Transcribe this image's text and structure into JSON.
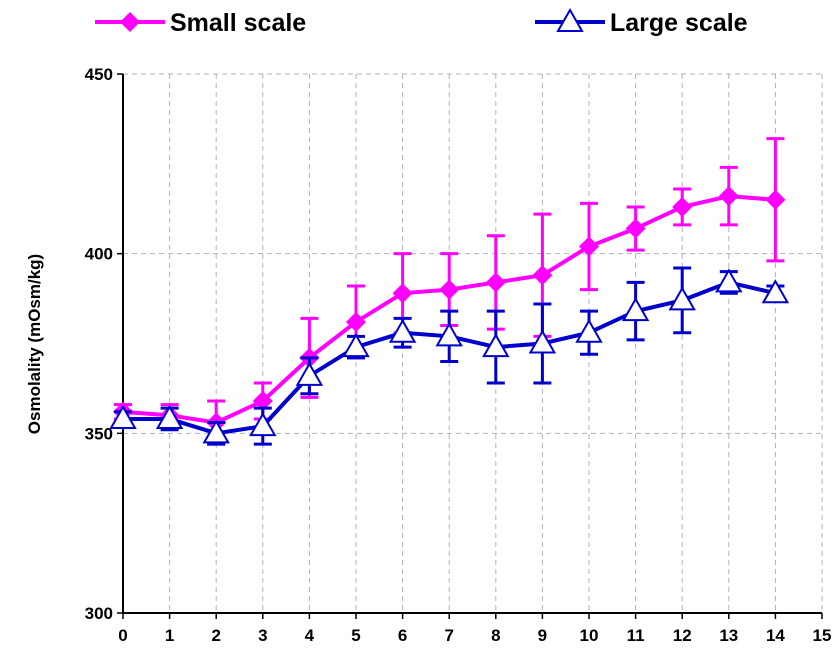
{
  "chart_data": {
    "type": "line",
    "ylabel": "Osmolality (mOsm/kg)",
    "xlabel": "",
    "xlim": [
      0,
      15
    ],
    "ylim": [
      300,
      450
    ],
    "xticks": [
      0,
      1,
      2,
      3,
      4,
      5,
      6,
      7,
      8,
      9,
      10,
      11,
      12,
      13,
      14,
      15
    ],
    "yticks": [
      300,
      350,
      400,
      450
    ],
    "grid": true,
    "legend_position": "top",
    "series": [
      {
        "name": "Small scale",
        "color": "#ff00ff",
        "marker": "diamond",
        "x": [
          0,
          1,
          2,
          3,
          4,
          5,
          6,
          7,
          8,
          9,
          10,
          11,
          12,
          13,
          14
        ],
        "y": [
          356,
          355,
          353,
          359,
          371,
          381,
          389,
          390,
          392,
          394,
          402,
          407,
          413,
          416,
          415
        ],
        "error": [
          2,
          3,
          6,
          5,
          11,
          10,
          11,
          10,
          13,
          17,
          12,
          6,
          5,
          8,
          17
        ]
      },
      {
        "name": "Large scale",
        "color": "#0000cc",
        "marker": "triangle",
        "x": [
          0,
          1,
          2,
          3,
          4,
          5,
          6,
          7,
          8,
          9,
          10,
          11,
          12,
          13,
          14
        ],
        "y": [
          354,
          354,
          350,
          352,
          366,
          374,
          378,
          377,
          374,
          375,
          378,
          384,
          387,
          392,
          389
        ],
        "error": [
          2,
          3,
          3,
          5,
          5,
          3,
          4,
          7,
          10,
          11,
          6,
          8,
          9,
          3,
          2
        ]
      }
    ]
  }
}
